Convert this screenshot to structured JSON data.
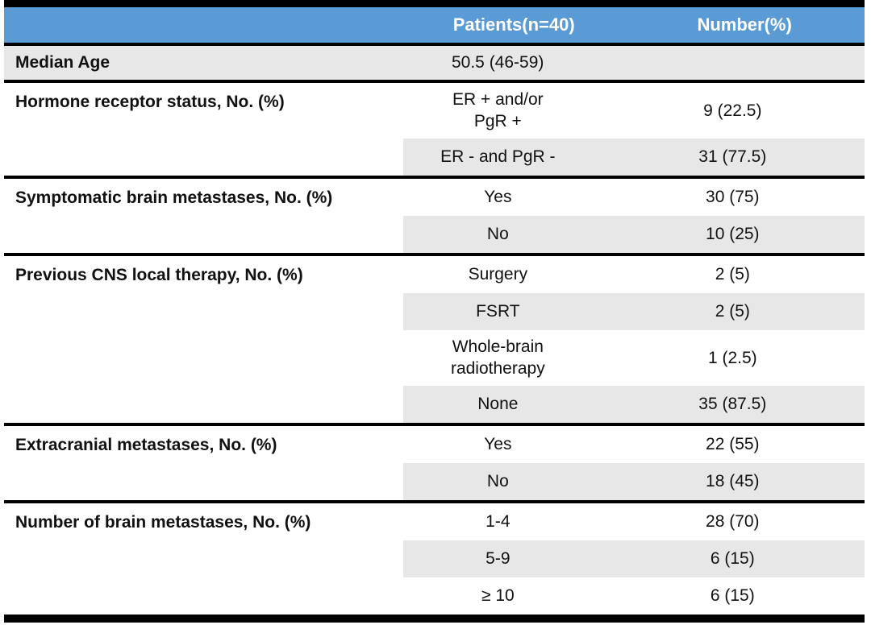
{
  "table": {
    "header": {
      "patients": "Patients(n=40)",
      "number": "Number(%)"
    },
    "colors": {
      "header_bg": "#5B9BD5",
      "header_text": "#FFFFFF",
      "shaded_row_bg": "#E8E7E7",
      "border": "#000000",
      "body_text": "#111111"
    },
    "sections": [
      {
        "label": "Median Age",
        "rows": [
          {
            "patients": "50.5 (46-59)",
            "number": ""
          }
        ]
      },
      {
        "label": "Hormone receptor status, No. (%)",
        "rows": [
          {
            "patients": "ER + and/or\nPgR +",
            "number": "9 (22.5)"
          },
          {
            "patients": "ER - and PgR -",
            "number": "31 (77.5)"
          }
        ]
      },
      {
        "label": "Symptomatic brain metastases, No. (%)",
        "rows": [
          {
            "patients": "Yes",
            "number": "30 (75)"
          },
          {
            "patients": "No",
            "number": "10 (25)"
          }
        ]
      },
      {
        "label": "Previous CNS local therapy, No. (%)",
        "rows": [
          {
            "patients": "Surgery",
            "number": "2 (5)"
          },
          {
            "patients": "FSRT",
            "number": "2 (5)"
          },
          {
            "patients": "Whole-brain\nradiotherapy",
            "number": "1 (2.5)"
          },
          {
            "patients": "None",
            "number": "35 (87.5)"
          }
        ]
      },
      {
        "label": "Extracranial metastases, No. (%)",
        "rows": [
          {
            "patients": "Yes",
            "number": "22 (55)"
          },
          {
            "patients": "No",
            "number": "18 (45)"
          }
        ]
      },
      {
        "label": "Number of brain metastases, No. (%)",
        "rows": [
          {
            "patients": "1-4",
            "number": "28 (70)"
          },
          {
            "patients": "5-9",
            "number": "6 (15)"
          },
          {
            "patients": "≥ 10",
            "number": "6 (15)"
          }
        ]
      }
    ]
  }
}
